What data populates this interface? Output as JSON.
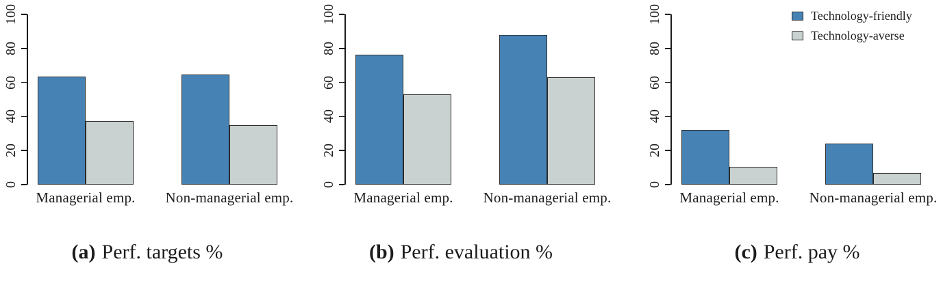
{
  "figure": {
    "legend": {
      "items": [
        {
          "label": "Technology-friendly",
          "color": "#4682B4"
        },
        {
          "label": "Technology-averse",
          "color": "#C9D2D1"
        }
      ]
    },
    "captions": [
      {
        "label": "(a)",
        "text": "Perf. targets %"
      },
      {
        "label": "(b)",
        "text": "Perf. evaluation %"
      },
      {
        "label": "(c)",
        "text": "Perf. pay %"
      }
    ]
  },
  "chart_data": [
    {
      "type": "bar",
      "title": "(a) Perf. targets %",
      "categories": [
        "Managerial emp.",
        "Non-managerial emp."
      ],
      "series": [
        {
          "name": "Technology-friendly",
          "color": "#4682B4",
          "values": [
            63.5,
            64.5
          ]
        },
        {
          "name": "Technology-averse",
          "color": "#C9D2D1",
          "values": [
            37.5,
            35.0
          ]
        }
      ],
      "xlabel": "",
      "ylabel": "",
      "ylim": [
        0,
        100
      ],
      "yticks": [
        0,
        20,
        40,
        60,
        80,
        100
      ],
      "grid": false,
      "legend_position": "none"
    },
    {
      "type": "bar",
      "title": "(b) Perf. evaluation %",
      "categories": [
        "Managerial emp.",
        "Non-managerial emp."
      ],
      "series": [
        {
          "name": "Technology-friendly",
          "color": "#4682B4",
          "values": [
            76.5,
            88.0
          ]
        },
        {
          "name": "Technology-averse",
          "color": "#C9D2D1",
          "values": [
            53.0,
            63.0
          ]
        }
      ],
      "xlabel": "",
      "ylabel": "",
      "ylim": [
        0,
        100
      ],
      "yticks": [
        0,
        20,
        40,
        60,
        80,
        100
      ],
      "grid": false,
      "legend_position": "none"
    },
    {
      "type": "bar",
      "title": "(c) Perf. pay %",
      "categories": [
        "Managerial emp.",
        "Non-managerial emp."
      ],
      "series": [
        {
          "name": "Technology-friendly",
          "color": "#4682B4",
          "values": [
            32.0,
            24.0
          ]
        },
        {
          "name": "Technology-averse",
          "color": "#C9D2D1",
          "values": [
            10.5,
            7.0
          ]
        }
      ],
      "xlabel": "",
      "ylabel": "",
      "ylim": [
        0,
        100
      ],
      "yticks": [
        0,
        20,
        40,
        60,
        80,
        100
      ],
      "grid": false,
      "legend_position": "top-right"
    }
  ]
}
